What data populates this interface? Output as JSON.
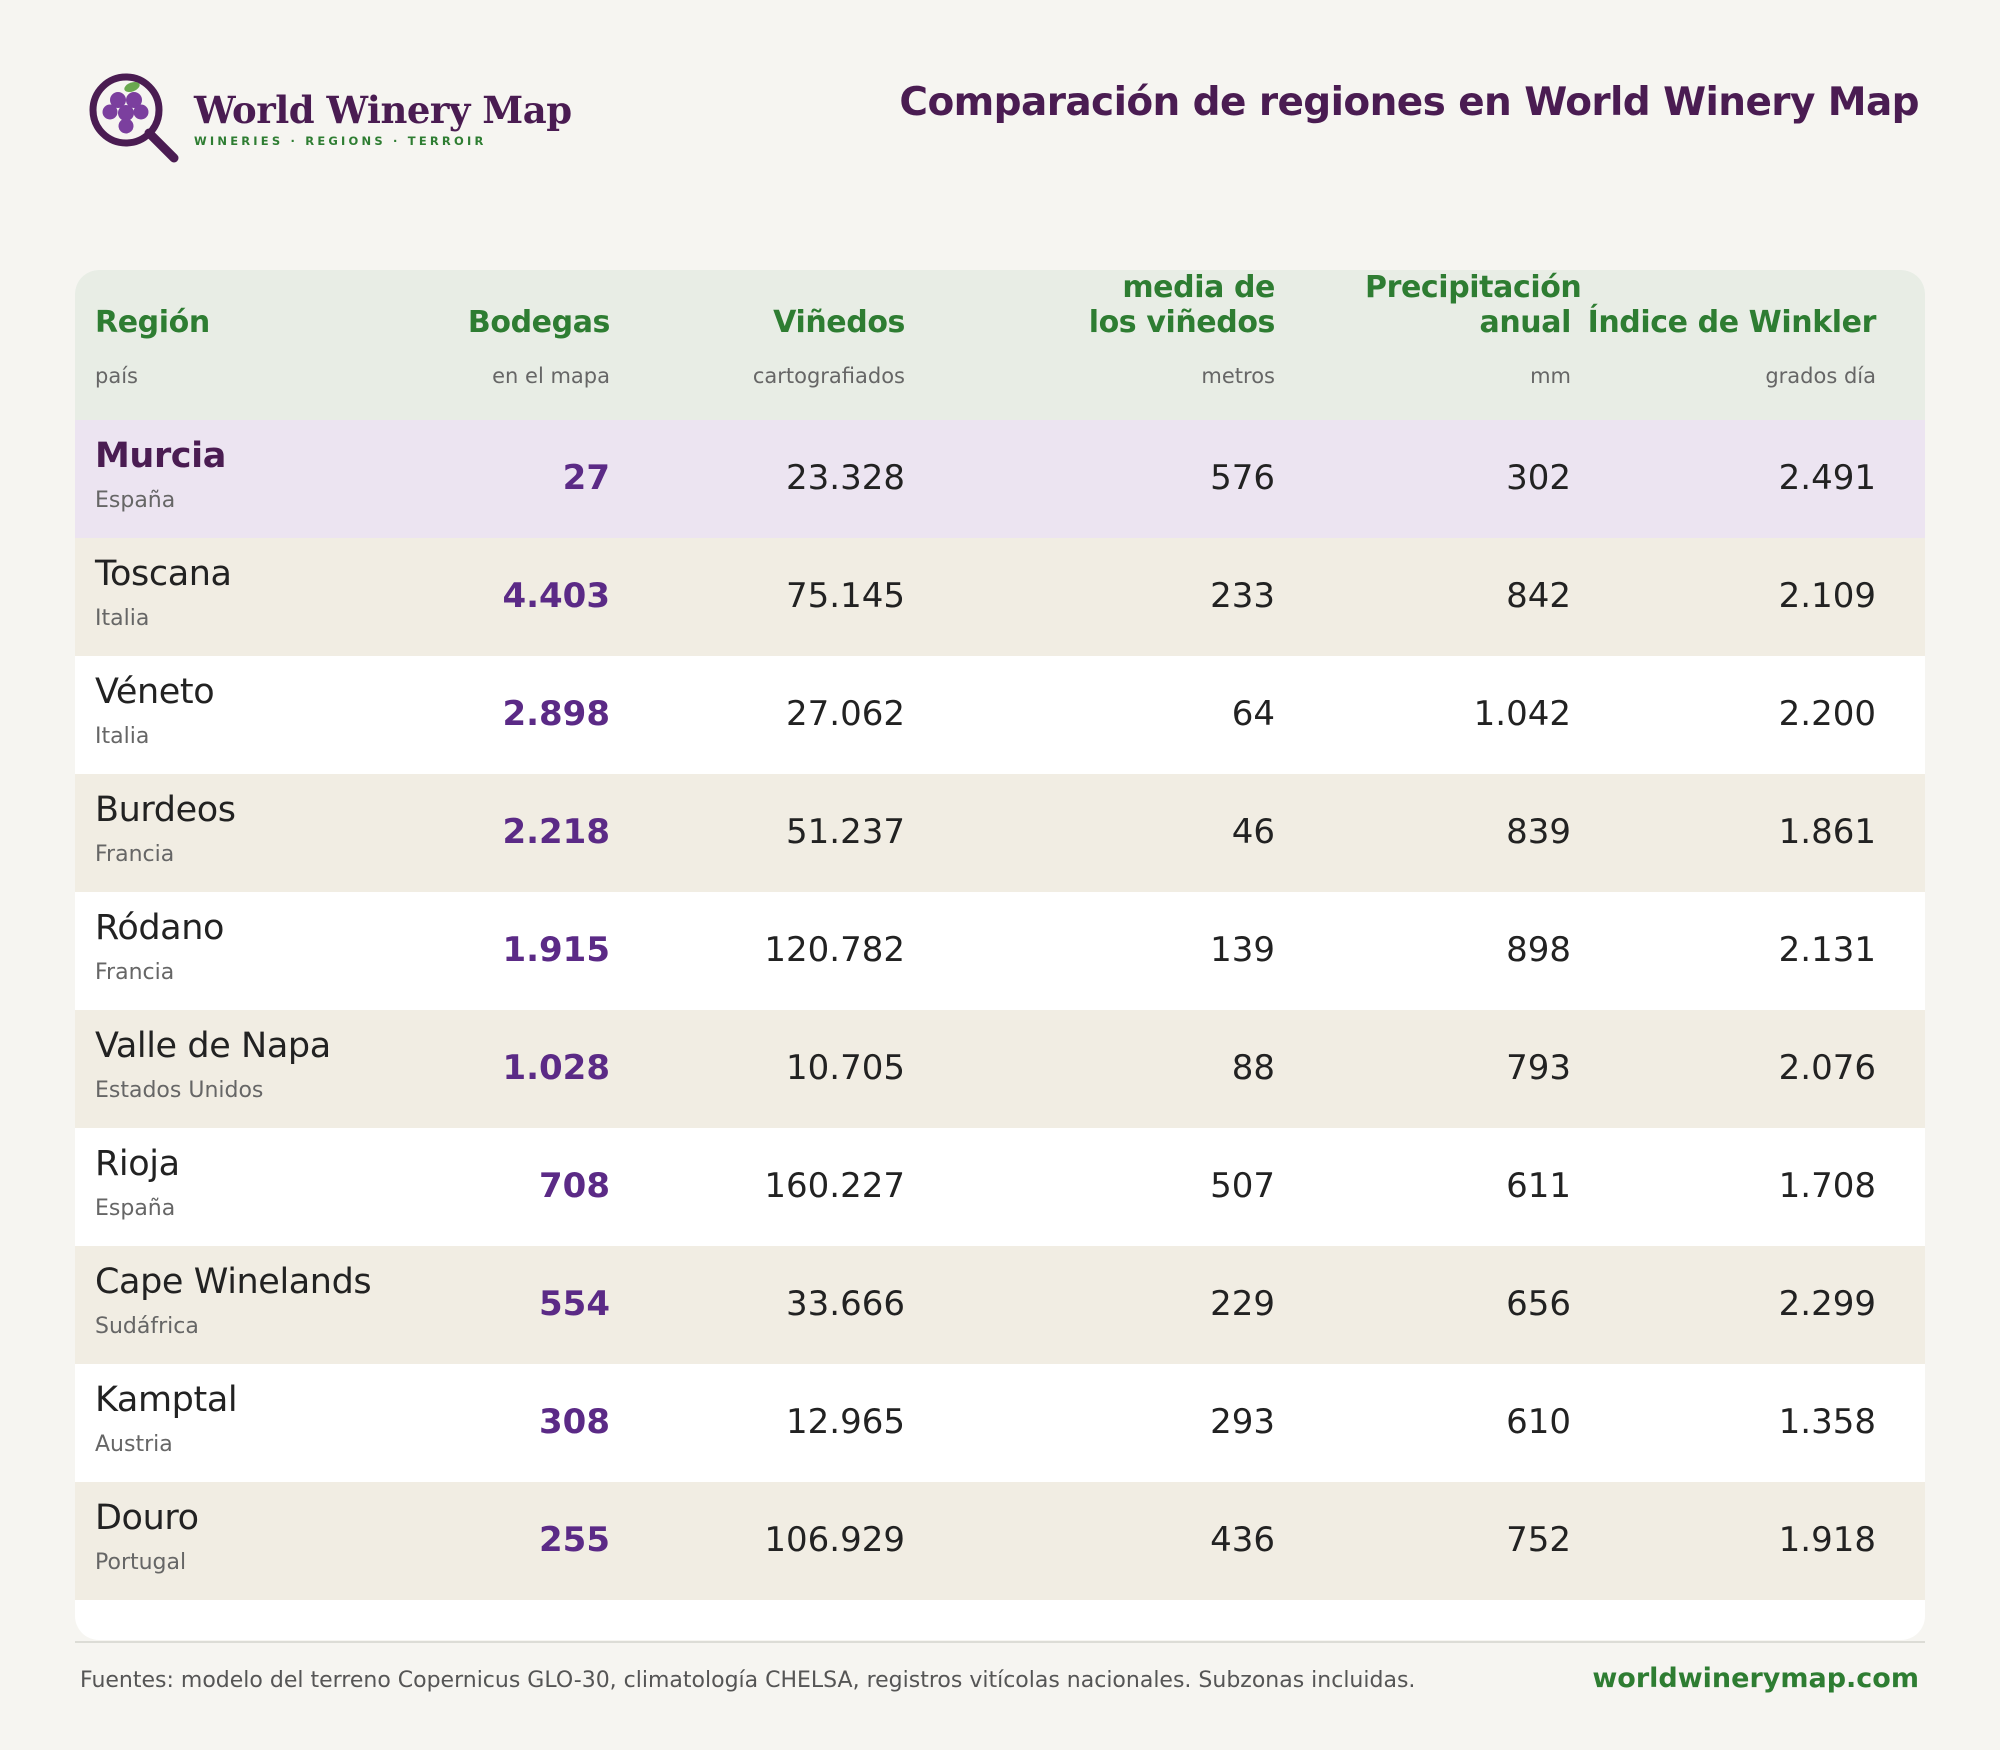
{
  "brand": {
    "name": "World Winery Map",
    "tagline": "WINERIES · REGIONS · TERROIR"
  },
  "title": "Comparación de regiones en World Winery Map",
  "columns": [
    {
      "label": "Región",
      "sub": "país"
    },
    {
      "label": "Bodegas",
      "sub": "en el mapa"
    },
    {
      "label": "Viñedos",
      "sub": "cartografiados"
    },
    {
      "label": "Altitud media de los viñedos",
      "sub": "metros"
    },
    {
      "label": "Precipitación anual",
      "sub": "mm"
    },
    {
      "label": "Índice de Winkler",
      "sub": "grados día"
    }
  ],
  "rows": [
    {
      "region": "Murcia",
      "country": "España",
      "wineries": "27",
      "vineyards": "23.328",
      "altitude": "576",
      "precip": "302",
      "winkler": "2.491"
    },
    {
      "region": "Toscana",
      "country": "Italia",
      "wineries": "4.403",
      "vineyards": "75.145",
      "altitude": "233",
      "precip": "842",
      "winkler": "2.109"
    },
    {
      "region": "Véneto",
      "country": "Italia",
      "wineries": "2.898",
      "vineyards": "27.062",
      "altitude": "64",
      "precip": "1.042",
      "winkler": "2.200"
    },
    {
      "region": "Burdeos",
      "country": "Francia",
      "wineries": "2.218",
      "vineyards": "51.237",
      "altitude": "46",
      "precip": "839",
      "winkler": "1.861"
    },
    {
      "region": "Ródano",
      "country": "Francia",
      "wineries": "1.915",
      "vineyards": "120.782",
      "altitude": "139",
      "precip": "898",
      "winkler": "2.131"
    },
    {
      "region": "Valle de Napa",
      "country": "Estados Unidos",
      "wineries": "1.028",
      "vineyards": "10.705",
      "altitude": "88",
      "precip": "793",
      "winkler": "2.076"
    },
    {
      "region": "Rioja",
      "country": "España",
      "wineries": "708",
      "vineyards": "160.227",
      "altitude": "507",
      "precip": "611",
      "winkler": "1.708"
    },
    {
      "region": "Cape Winelands",
      "country": "Sudáfrica",
      "wineries": "554",
      "vineyards": "33.666",
      "altitude": "229",
      "precip": "656",
      "winkler": "2.299"
    },
    {
      "region": "Kamptal",
      "country": "Austria",
      "wineries": "308",
      "vineyards": "12.965",
      "altitude": "293",
      "precip": "610",
      "winkler": "1.358"
    },
    {
      "region": "Douro",
      "country": "Portugal",
      "wineries": "255",
      "vineyards": "106.929",
      "altitude": "436",
      "precip": "752",
      "winkler": "1.918"
    }
  ],
  "footer": {
    "note": "Fuentes: modelo del terreno Copernicus GLO-30, climatología CHELSA, registros vitícolas nacionales. Subzonas incluidas.",
    "url": "worldwinerymap.com"
  },
  "colors": {
    "brand_purple": "#4a1c52",
    "accent_green": "#2e7d32",
    "wineries_purple": "#5b2a86",
    "highlight_row": "#ece4f1",
    "header_bg": "#e8ede5"
  }
}
